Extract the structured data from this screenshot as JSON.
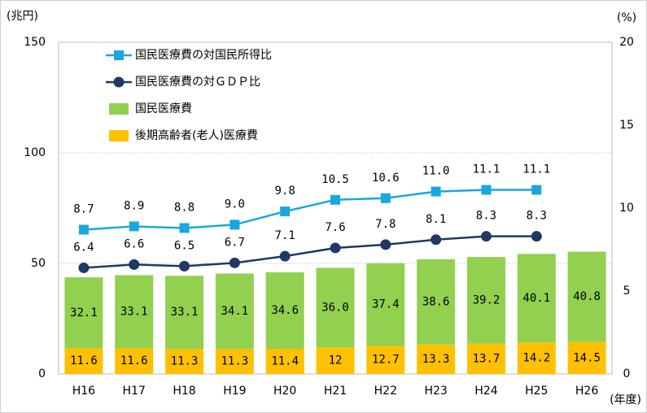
{
  "chart_data": {
    "type": "bar",
    "y_unit": "(兆円)",
    "y2_unit": "(%)",
    "x_unit": "(年度)",
    "categories": [
      "H16",
      "H17",
      "H18",
      "H19",
      "H20",
      "H21",
      "H22",
      "H23",
      "H24",
      "H25",
      "H26"
    ],
    "ylim": [
      0,
      150
    ],
    "yticks": [
      0,
      50,
      100,
      150
    ],
    "y2lim": [
      0,
      20
    ],
    "y2ticks": [
      0,
      5,
      10,
      15,
      20
    ],
    "grid": true,
    "legend": "upper left",
    "series": [
      {
        "name": "国民医療費の対国民所得比",
        "type": "line",
        "marker": "square",
        "axis": "y2",
        "color": "#1aa7e0",
        "values": [
          8.7,
          8.9,
          8.8,
          9.0,
          9.8,
          10.5,
          10.6,
          11.0,
          11.1,
          11.1,
          null
        ],
        "value_labels": [
          "8.7",
          "8.9",
          "8.8",
          "9.0",
          "9.8",
          "10.5",
          "10.6",
          "11.0",
          "11.1",
          "11.1",
          null
        ]
      },
      {
        "name": "国民医療費の対ＧＤＰ比",
        "type": "line",
        "marker": "circle",
        "axis": "y2",
        "color": "#1f3864",
        "values": [
          6.4,
          6.6,
          6.5,
          6.7,
          7.1,
          7.6,
          7.8,
          8.1,
          8.3,
          8.3,
          null
        ]
      },
      {
        "name": "国民医療費",
        "type": "bar",
        "color": "#92d050",
        "values": [
          32.1,
          33.1,
          33.1,
          34.1,
          34.6,
          36.0,
          37.4,
          38.6,
          39.2,
          40.1,
          40.8
        ],
        "value_labels": [
          "32.1",
          "33.1",
          "33.1",
          "34.1",
          "34.6",
          "36.0",
          "37.4",
          "38.6",
          "39.2",
          "40.1",
          "40.8"
        ]
      },
      {
        "name": "後期高齢者(老人)医療費",
        "type": "bar",
        "color": "#ffc000",
        "values": [
          11.6,
          11.6,
          11.3,
          11.3,
          11.4,
          12.0,
          12.7,
          13.3,
          13.7,
          14.2,
          14.5
        ]
      }
    ]
  }
}
